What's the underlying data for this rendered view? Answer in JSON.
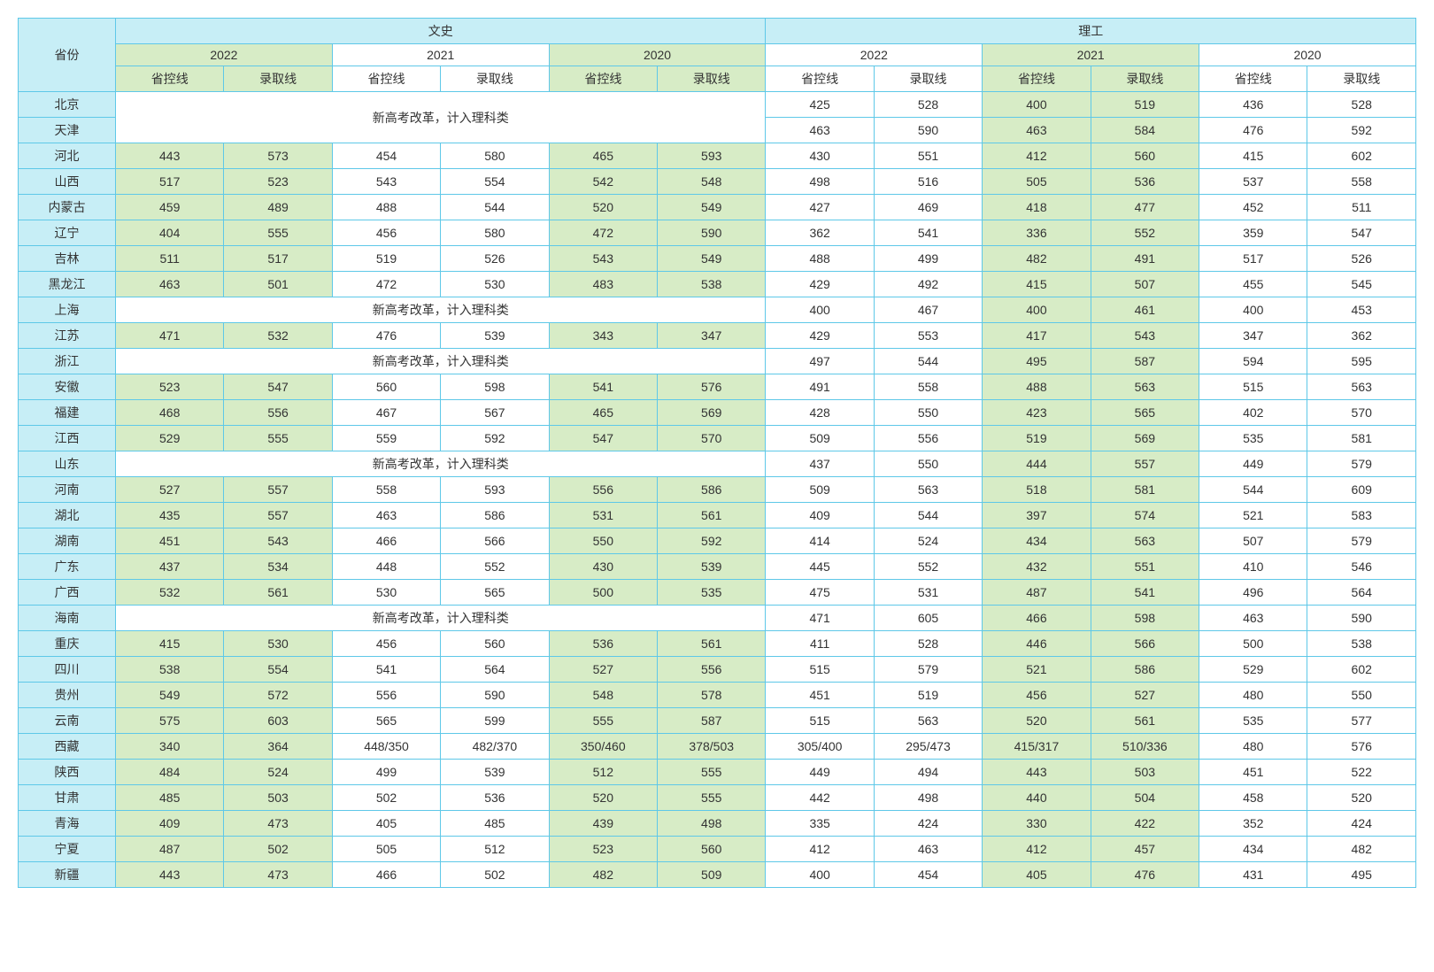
{
  "headers": {
    "province": "省份",
    "wenshi": "文史",
    "ligong": "理工",
    "y2022": "2022",
    "y2021": "2021",
    "y2020": "2020",
    "shengkong": "省控线",
    "luqu": "录取线"
  },
  "merged_text": "新高考改革，计入理科类",
  "provinces": [
    "北京",
    "天津",
    "河北",
    "山西",
    "内蒙古",
    "辽宁",
    "吉林",
    "黑龙江",
    "上海",
    "江苏",
    "浙江",
    "安徽",
    "福建",
    "江西",
    "山东",
    "河南",
    "湖北",
    "湖南",
    "广东",
    "广西",
    "海南",
    "重庆",
    "四川",
    "贵州",
    "云南",
    "西藏",
    "陕西",
    "甘肃",
    "青海",
    "宁夏",
    "新疆"
  ],
  "rows": [
    {
      "p": "北京",
      "type": "merge_first",
      "lg": [
        "425",
        "528",
        "400",
        "519",
        "436",
        "528"
      ]
    },
    {
      "p": "天津",
      "type": "merge_cont",
      "lg": [
        "463",
        "590",
        "463",
        "584",
        "476",
        "592"
      ]
    },
    {
      "p": "河北",
      "ws": [
        "443",
        "573",
        "454",
        "580",
        "465",
        "593"
      ],
      "lg": [
        "430",
        "551",
        "412",
        "560",
        "415",
        "602"
      ]
    },
    {
      "p": "山西",
      "ws": [
        "517",
        "523",
        "543",
        "554",
        "542",
        "548"
      ],
      "lg": [
        "498",
        "516",
        "505",
        "536",
        "537",
        "558"
      ]
    },
    {
      "p": "内蒙古",
      "ws": [
        "459",
        "489",
        "488",
        "544",
        "520",
        "549"
      ],
      "lg": [
        "427",
        "469",
        "418",
        "477",
        "452",
        "511"
      ]
    },
    {
      "p": "辽宁",
      "ws": [
        "404",
        "555",
        "456",
        "580",
        "472",
        "590"
      ],
      "lg": [
        "362",
        "541",
        "336",
        "552",
        "359",
        "547"
      ]
    },
    {
      "p": "吉林",
      "ws": [
        "511",
        "517",
        "519",
        "526",
        "543",
        "549"
      ],
      "lg": [
        "488",
        "499",
        "482",
        "491",
        "517",
        "526"
      ]
    },
    {
      "p": "黑龙江",
      "ws": [
        "463",
        "501",
        "472",
        "530",
        "483",
        "538"
      ],
      "lg": [
        "429",
        "492",
        "415",
        "507",
        "455",
        "545"
      ]
    },
    {
      "p": "上海",
      "type": "merge_single",
      "lg": [
        "400",
        "467",
        "400",
        "461",
        "400",
        "453"
      ]
    },
    {
      "p": "江苏",
      "ws": [
        "471",
        "532",
        "476",
        "539",
        "343",
        "347"
      ],
      "lg": [
        "429",
        "553",
        "417",
        "543",
        "347",
        "362"
      ]
    },
    {
      "p": "浙江",
      "type": "merge_single",
      "lg": [
        "497",
        "544",
        "495",
        "587",
        "594",
        "595"
      ]
    },
    {
      "p": "安徽",
      "ws": [
        "523",
        "547",
        "560",
        "598",
        "541",
        "576"
      ],
      "lg": [
        "491",
        "558",
        "488",
        "563",
        "515",
        "563"
      ]
    },
    {
      "p": "福建",
      "ws": [
        "468",
        "556",
        "467",
        "567",
        "465",
        "569"
      ],
      "lg": [
        "428",
        "550",
        "423",
        "565",
        "402",
        "570"
      ]
    },
    {
      "p": "江西",
      "ws": [
        "529",
        "555",
        "559",
        "592",
        "547",
        "570"
      ],
      "lg": [
        "509",
        "556",
        "519",
        "569",
        "535",
        "581"
      ]
    },
    {
      "p": "山东",
      "type": "merge_single",
      "lg": [
        "437",
        "550",
        "444",
        "557",
        "449",
        "579"
      ]
    },
    {
      "p": "河南",
      "ws": [
        "527",
        "557",
        "558",
        "593",
        "556",
        "586"
      ],
      "lg": [
        "509",
        "563",
        "518",
        "581",
        "544",
        "609"
      ]
    },
    {
      "p": "湖北",
      "ws": [
        "435",
        "557",
        "463",
        "586",
        "531",
        "561"
      ],
      "lg": [
        "409",
        "544",
        "397",
        "574",
        "521",
        "583"
      ]
    },
    {
      "p": "湖南",
      "ws": [
        "451",
        "543",
        "466",
        "566",
        "550",
        "592"
      ],
      "lg": [
        "414",
        "524",
        "434",
        "563",
        "507",
        "579"
      ]
    },
    {
      "p": "广东",
      "ws": [
        "437",
        "534",
        "448",
        "552",
        "430",
        "539"
      ],
      "lg": [
        "445",
        "552",
        "432",
        "551",
        "410",
        "546"
      ]
    },
    {
      "p": "广西",
      "ws": [
        "532",
        "561",
        "530",
        "565",
        "500",
        "535"
      ],
      "lg": [
        "475",
        "531",
        "487",
        "541",
        "496",
        "564"
      ]
    },
    {
      "p": "海南",
      "type": "merge_single",
      "lg": [
        "471",
        "605",
        "466",
        "598",
        "463",
        "590"
      ]
    },
    {
      "p": "重庆",
      "ws": [
        "415",
        "530",
        "456",
        "560",
        "536",
        "561"
      ],
      "lg": [
        "411",
        "528",
        "446",
        "566",
        "500",
        "538"
      ]
    },
    {
      "p": "四川",
      "ws": [
        "538",
        "554",
        "541",
        "564",
        "527",
        "556"
      ],
      "lg": [
        "515",
        "579",
        "521",
        "586",
        "529",
        "602"
      ]
    },
    {
      "p": "贵州",
      "ws": [
        "549",
        "572",
        "556",
        "590",
        "548",
        "578"
      ],
      "lg": [
        "451",
        "519",
        "456",
        "527",
        "480",
        "550"
      ]
    },
    {
      "p": "云南",
      "ws": [
        "575",
        "603",
        "565",
        "599",
        "555",
        "587"
      ],
      "lg": [
        "515",
        "563",
        "520",
        "561",
        "535",
        "577"
      ]
    },
    {
      "p": "西藏",
      "ws": [
        "340",
        "364",
        "448/350",
        "482/370",
        "350/460",
        "378/503"
      ],
      "lg": [
        "305/400",
        "295/473",
        "415/317",
        "510/336",
        "480",
        "576"
      ]
    },
    {
      "p": "陕西",
      "ws": [
        "484",
        "524",
        "499",
        "539",
        "512",
        "555"
      ],
      "lg": [
        "449",
        "494",
        "443",
        "503",
        "451",
        "522"
      ]
    },
    {
      "p": "甘肃",
      "ws": [
        "485",
        "503",
        "502",
        "536",
        "520",
        "555"
      ],
      "lg": [
        "442",
        "498",
        "440",
        "504",
        "458",
        "520"
      ]
    },
    {
      "p": "青海",
      "ws": [
        "409",
        "473",
        "405",
        "485",
        "439",
        "498"
      ],
      "lg": [
        "335",
        "424",
        "330",
        "422",
        "352",
        "424"
      ]
    },
    {
      "p": "宁夏",
      "ws": [
        "487",
        "502",
        "505",
        "512",
        "523",
        "560"
      ],
      "lg": [
        "412",
        "463",
        "412",
        "457",
        "434",
        "482"
      ]
    },
    {
      "p": "新疆",
      "ws": [
        "443",
        "473",
        "466",
        "502",
        "482",
        "509"
      ],
      "lg": [
        "400",
        "454",
        "405",
        "476",
        "431",
        "495"
      ]
    }
  ],
  "style": {
    "border_color": "#5ec8e8",
    "header_bg": "#c7eef6",
    "green_bg": "#d7ecc6",
    "text_color": "#333333",
    "font_size": 14
  }
}
